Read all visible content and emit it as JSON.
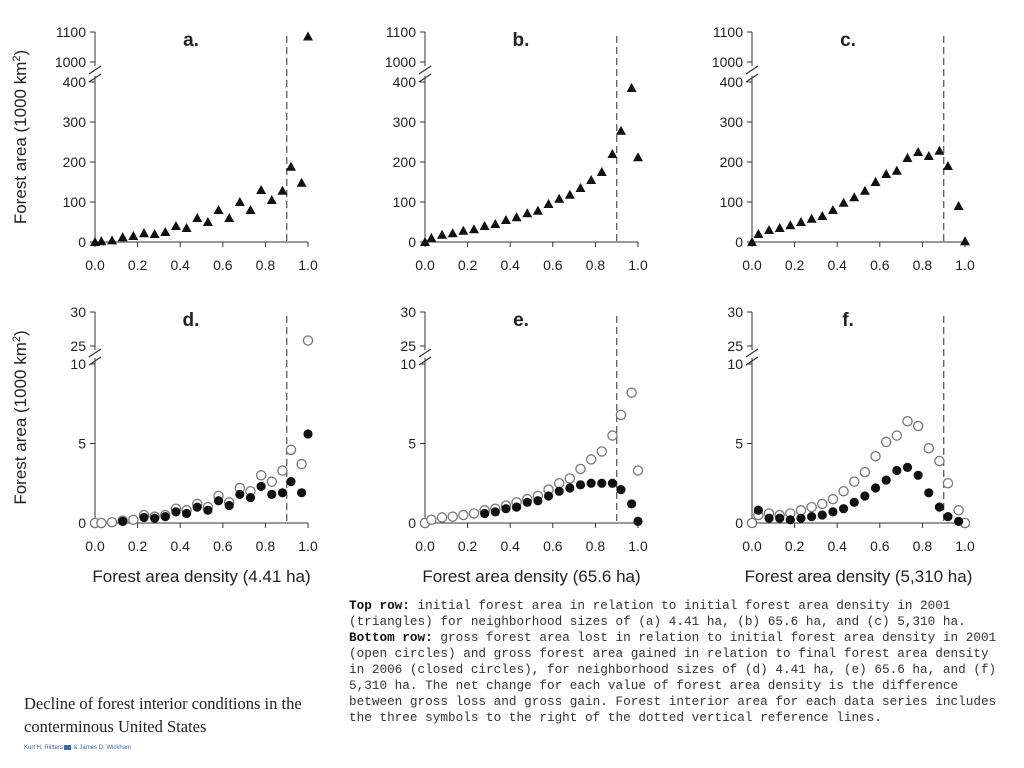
{
  "chart_data": [
    {
      "id": "a",
      "type": "scatter",
      "title": "a.",
      "row": "top",
      "ylabel": "Forest area (1000 km2)",
      "ylabel_main": "Forest area (1000 km",
      "ylabel_sup": "2",
      "ylabel_end": ")",
      "xlabel": "",
      "xlim": [
        0,
        1
      ],
      "ylim_lower": [
        0,
        400
      ],
      "ylim_upper": [
        1000,
        1100
      ],
      "yticks_lower": [
        "0",
        "100",
        "200",
        "300",
        "400"
      ],
      "yticks_upper": [
        "1000",
        "1100"
      ],
      "xticks": [
        "0.0",
        "0.2",
        "0.4",
        "0.6",
        "0.8",
        "1.0"
      ],
      "reference_line_x": 0.9,
      "series": [
        {
          "name": "initial forest area (2001)",
          "marker": "triangle",
          "x": [
            0.0,
            0.03,
            0.08,
            0.13,
            0.18,
            0.23,
            0.28,
            0.33,
            0.38,
            0.43,
            0.48,
            0.53,
            0.58,
            0.63,
            0.68,
            0.73,
            0.78,
            0.83,
            0.88,
            0.92,
            0.97,
            1.0
          ],
          "y": [
            0,
            2,
            4,
            12,
            15,
            22,
            20,
            25,
            40,
            35,
            60,
            50,
            80,
            60,
            100,
            80,
            130,
            105,
            128,
            188,
            148,
            1085
          ]
        }
      ]
    },
    {
      "id": "b",
      "type": "scatter",
      "title": "b.",
      "row": "top",
      "xlabel": "",
      "xlim": [
        0,
        1
      ],
      "ylim_lower": [
        0,
        400
      ],
      "ylim_upper": [
        1000,
        1100
      ],
      "yticks_lower": [
        "0",
        "100",
        "200",
        "300",
        "400"
      ],
      "yticks_upper": [
        "1000",
        "1100"
      ],
      "xticks": [
        "0.0",
        "0.2",
        "0.4",
        "0.6",
        "0.8",
        "1.0"
      ],
      "reference_line_x": 0.9,
      "series": [
        {
          "name": "initial forest area (2001)",
          "marker": "triangle",
          "x": [
            0.0,
            0.03,
            0.08,
            0.13,
            0.18,
            0.23,
            0.28,
            0.33,
            0.38,
            0.43,
            0.48,
            0.53,
            0.58,
            0.63,
            0.68,
            0.73,
            0.78,
            0.83,
            0.88,
            0.92,
            0.97,
            1.0
          ],
          "y": [
            0,
            10,
            18,
            22,
            28,
            32,
            40,
            45,
            55,
            62,
            72,
            78,
            95,
            108,
            118,
            135,
            155,
            175,
            220,
            278,
            385,
            212
          ]
        }
      ]
    },
    {
      "id": "c",
      "type": "scatter",
      "title": "c.",
      "row": "top",
      "xlabel": "",
      "xlim": [
        0,
        1
      ],
      "ylim_lower": [
        0,
        400
      ],
      "ylim_upper": [
        1000,
        1100
      ],
      "yticks_lower": [
        "0",
        "100",
        "200",
        "300",
        "400"
      ],
      "yticks_upper": [
        "1000",
        "1100"
      ],
      "xticks": [
        "0.0",
        "0.2",
        "0.4",
        "0.6",
        "0.8",
        "1.0"
      ],
      "reference_line_x": 0.9,
      "series": [
        {
          "name": "initial forest area (2001)",
          "marker": "triangle",
          "x": [
            0.0,
            0.03,
            0.08,
            0.13,
            0.18,
            0.23,
            0.28,
            0.33,
            0.38,
            0.43,
            0.48,
            0.53,
            0.58,
            0.63,
            0.68,
            0.73,
            0.78,
            0.83,
            0.88,
            0.92,
            0.97,
            1.0
          ],
          "y": [
            0,
            20,
            30,
            35,
            42,
            50,
            58,
            65,
            80,
            98,
            112,
            128,
            150,
            170,
            178,
            210,
            225,
            215,
            228,
            190,
            90,
            2
          ]
        }
      ]
    },
    {
      "id": "d",
      "type": "scatter",
      "title": "d.",
      "row": "bottom",
      "ylabel": "Forest area (1000 km2)",
      "ylabel_main": "Forest area (1000 km",
      "ylabel_sup": "2",
      "ylabel_end": ")",
      "xlabel": "Forest area density (4.41 ha)",
      "xlim": [
        0,
        1
      ],
      "ylim_lower": [
        0,
        10
      ],
      "ylim_upper": [
        25,
        30
      ],
      "yticks_lower": [
        "0",
        "5",
        "10"
      ],
      "yticks_upper": [
        "25",
        "30"
      ],
      "xticks": [
        "0.0",
        "0.2",
        "0.4",
        "0.6",
        "0.8",
        "1.0"
      ],
      "reference_line_x": 0.9,
      "series": [
        {
          "name": "gross forest area lost (2001)",
          "marker": "open-circle",
          "x": [
            0.0,
            0.03,
            0.08,
            0.13,
            0.18,
            0.23,
            0.28,
            0.33,
            0.38,
            0.43,
            0.48,
            0.53,
            0.58,
            0.63,
            0.68,
            0.73,
            0.78,
            0.83,
            0.88,
            0.92,
            0.97,
            1.0
          ],
          "y": [
            0.0,
            0.0,
            0.05,
            0.15,
            0.2,
            0.5,
            0.4,
            0.5,
            0.9,
            0.8,
            1.2,
            1.0,
            1.7,
            1.3,
            2.2,
            2.0,
            3.0,
            2.6,
            3.3,
            4.6,
            3.7,
            25.8
          ]
        },
        {
          "name": "gross forest area gained (2006)",
          "marker": "closed-circle",
          "x": [
            0.13,
            0.23,
            0.28,
            0.33,
            0.38,
            0.43,
            0.48,
            0.53,
            0.58,
            0.63,
            0.68,
            0.73,
            0.78,
            0.83,
            0.88,
            0.92,
            0.97,
            1.0
          ],
          "y": [
            0.1,
            0.35,
            0.3,
            0.4,
            0.7,
            0.6,
            1.0,
            0.8,
            1.4,
            1.1,
            1.8,
            1.6,
            2.3,
            1.8,
            1.9,
            2.6,
            1.9,
            5.6
          ]
        }
      ]
    },
    {
      "id": "e",
      "type": "scatter",
      "title": "e.",
      "row": "bottom",
      "xlabel": "Forest area density (65.6 ha)",
      "xlim": [
        0,
        1
      ],
      "ylim_lower": [
        0,
        10
      ],
      "ylim_upper": [
        25,
        30
      ],
      "yticks_lower": [
        "0",
        "5",
        "10"
      ],
      "yticks_upper": [
        "25",
        "30"
      ],
      "xticks": [
        "0.0",
        "0.2",
        "0.4",
        "0.6",
        "0.8",
        "1.0"
      ],
      "reference_line_x": 0.9,
      "series": [
        {
          "name": "gross forest area lost (2001)",
          "marker": "open-circle",
          "x": [
            0.0,
            0.03,
            0.08,
            0.13,
            0.18,
            0.23,
            0.28,
            0.33,
            0.38,
            0.43,
            0.48,
            0.53,
            0.58,
            0.63,
            0.68,
            0.73,
            0.78,
            0.83,
            0.88,
            0.92,
            0.97,
            1.0
          ],
          "y": [
            0.0,
            0.2,
            0.35,
            0.4,
            0.5,
            0.6,
            0.8,
            0.9,
            1.1,
            1.3,
            1.5,
            1.7,
            2.1,
            2.5,
            2.8,
            3.4,
            4.0,
            4.5,
            5.5,
            6.8,
            8.2,
            3.3
          ]
        },
        {
          "name": "gross forest area gained (2006)",
          "marker": "closed-circle",
          "x": [
            0.28,
            0.33,
            0.38,
            0.43,
            0.48,
            0.53,
            0.58,
            0.63,
            0.68,
            0.73,
            0.78,
            0.83,
            0.88,
            0.92,
            0.97,
            1.0
          ],
          "y": [
            0.6,
            0.7,
            0.9,
            1.0,
            1.3,
            1.4,
            1.7,
            2.0,
            2.2,
            2.4,
            2.5,
            2.5,
            2.5,
            2.1,
            1.2,
            0.1
          ]
        }
      ]
    },
    {
      "id": "f",
      "type": "scatter",
      "title": "f.",
      "row": "bottom",
      "xlabel": "Forest area density (5,310 ha)",
      "xlim": [
        0,
        1
      ],
      "ylim_lower": [
        0,
        10
      ],
      "ylim_upper": [
        25,
        30
      ],
      "yticks_lower": [
        "0",
        "5",
        "10"
      ],
      "yticks_upper": [
        "25",
        "30"
      ],
      "xticks": [
        "0.0",
        "0.2",
        "0.4",
        "0.6",
        "0.8",
        "1.0"
      ],
      "reference_line_x": 0.9,
      "series": [
        {
          "name": "gross forest area lost (2001)",
          "marker": "open-circle",
          "x": [
            0.0,
            0.03,
            0.08,
            0.13,
            0.18,
            0.23,
            0.28,
            0.33,
            0.38,
            0.43,
            0.48,
            0.53,
            0.58,
            0.63,
            0.68,
            0.73,
            0.78,
            0.83,
            0.88,
            0.92,
            0.97,
            1.0
          ],
          "y": [
            0.0,
            0.5,
            0.6,
            0.5,
            0.6,
            0.8,
            1.0,
            1.2,
            1.5,
            2.0,
            2.6,
            3.2,
            4.2,
            5.1,
            5.5,
            6.4,
            6.1,
            4.7,
            3.9,
            2.5,
            0.8,
            0.0
          ]
        },
        {
          "name": "gross forest area gained (2006)",
          "marker": "closed-circle",
          "x": [
            0.03,
            0.08,
            0.13,
            0.18,
            0.23,
            0.28,
            0.33,
            0.38,
            0.43,
            0.48,
            0.53,
            0.58,
            0.63,
            0.68,
            0.73,
            0.78,
            0.83,
            0.88,
            0.92,
            0.97
          ],
          "y": [
            0.8,
            0.3,
            0.3,
            0.2,
            0.3,
            0.4,
            0.5,
            0.7,
            0.9,
            1.3,
            1.7,
            2.2,
            2.7,
            3.3,
            3.5,
            3.0,
            1.9,
            1.0,
            0.4,
            0.1
          ]
        }
      ]
    }
  ],
  "caption": {
    "top_row_label": "Top row:",
    "top_row_text": " initial forest area in relation to initial forest area density in 2001 (triangles) for neighborhood sizes of (a) 4.41 ha, (b) 65.6 ha, and (c) 5,310 ha. ",
    "bottom_row_label": "Bottom row:",
    "bottom_row_text": " gross forest area lost in relation to initial forest area density in 2001 (open circles) and gross forest area gained in relation to final forest area density in 2006 (closed circles), for neighborhood sizes of (d) 4.41 ha, (e) 65.6 ha, and (f) 5,310 ha. The net change for each value of forest area density is the difference between gross loss and gross gain. Forest interior area for each data series includes the three symbols to the right of the dotted vertical reference lines."
  },
  "article": {
    "title": "Decline of forest interior conditions in the conterminous United States",
    "author1": "Kurt H. Riitters",
    "author_sep": " & James D. Wickham"
  }
}
